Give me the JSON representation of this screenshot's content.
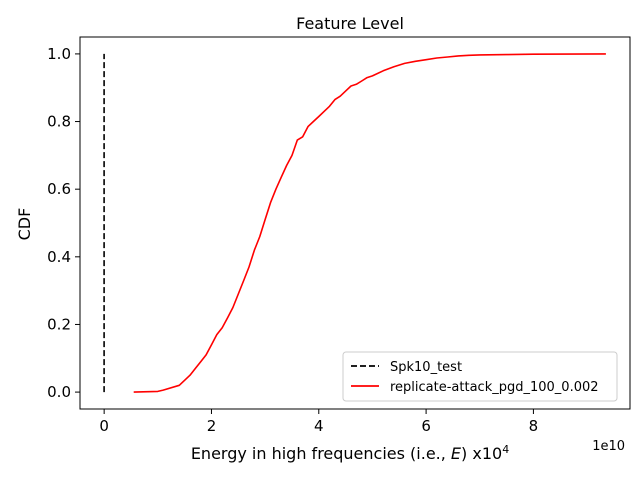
{
  "chart_data": {
    "type": "line",
    "title": "Feature Level",
    "xlabel_main": "Energy in high frequencies (i.e., ",
    "xlabel_var": "E",
    "xlabel_tail": ") x10",
    "xlabel_sup": "4",
    "ylabel": "CDF",
    "x_offset_text": "1e10",
    "xlim": [
      -0.45,
      9.8
    ],
    "ylim": [
      -0.05,
      1.05
    ],
    "x_ticks": [
      0,
      2,
      4,
      6,
      8
    ],
    "x_tick_labels": [
      "0",
      "2",
      "4",
      "6",
      "8"
    ],
    "y_ticks": [
      0.0,
      0.2,
      0.4,
      0.6,
      0.8,
      1.0
    ],
    "y_tick_labels": [
      "0.0",
      "0.2",
      "0.4",
      "0.6",
      "0.8",
      "1.0"
    ],
    "legend_position": "lower right",
    "series": [
      {
        "name": "Spk10_test",
        "color": "#000000",
        "dash": "dashed",
        "x": [
          0,
          0
        ],
        "y": [
          0.0,
          1.0
        ]
      },
      {
        "name": "replicate-attack_pgd_100_0.002",
        "color": "#ff0000",
        "dash": "solid",
        "x": [
          0.55,
          1.0,
          1.1,
          1.4,
          1.5,
          1.6,
          1.7,
          1.8,
          1.9,
          2.0,
          2.1,
          2.2,
          2.3,
          2.4,
          2.5,
          2.6,
          2.7,
          2.8,
          2.9,
          3.0,
          3.1,
          3.2,
          3.3,
          3.4,
          3.5,
          3.6,
          3.7,
          3.8,
          3.9,
          4.0,
          4.1,
          4.2,
          4.3,
          4.4,
          4.5,
          4.6,
          4.7,
          4.8,
          4.9,
          5.0,
          5.2,
          5.4,
          5.6,
          5.8,
          6.0,
          6.2,
          6.4,
          6.6,
          6.8,
          7.0,
          7.5,
          8.0,
          9.35
        ],
        "y": [
          0.0,
          0.002,
          0.006,
          0.02,
          0.035,
          0.05,
          0.07,
          0.09,
          0.11,
          0.14,
          0.17,
          0.19,
          0.22,
          0.25,
          0.29,
          0.33,
          0.37,
          0.42,
          0.46,
          0.51,
          0.56,
          0.6,
          0.635,
          0.67,
          0.7,
          0.745,
          0.755,
          0.785,
          0.8,
          0.815,
          0.83,
          0.845,
          0.865,
          0.875,
          0.89,
          0.905,
          0.91,
          0.92,
          0.93,
          0.935,
          0.95,
          0.962,
          0.972,
          0.978,
          0.983,
          0.988,
          0.991,
          0.994,
          0.996,
          0.997,
          0.998,
          0.999,
          1.0
        ]
      }
    ]
  }
}
